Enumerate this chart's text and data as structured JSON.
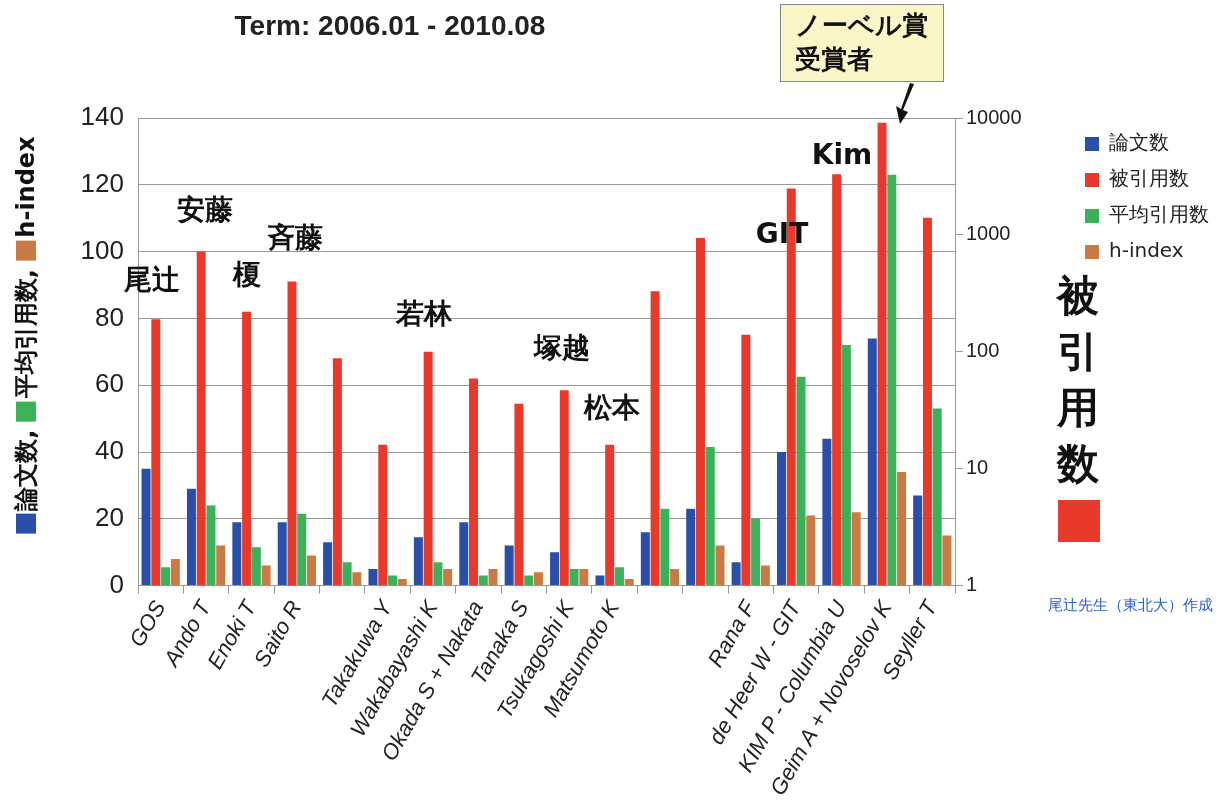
{
  "chart_data": {
    "type": "bar",
    "title": "Term: 2006.01 - 2010.08",
    "ylabel": "論文数, 平均引用数, h-index",
    "y2label": "被引用数",
    "categories": [
      "GOS",
      "Ando T",
      "Enoki T",
      "Saito R",
      null,
      "Takakuwa Y",
      "Wakabayashi K",
      "Okada S + Nakata",
      "Tanaka S",
      "Tsukagoshi K",
      "Matsumoto K",
      null,
      null,
      "Rana F",
      "de Heer W - GIT",
      "KIM P - Columbia U",
      "Geim A + Novoselov K",
      "Seyller T"
    ],
    "series": [
      {
        "name": "論文数",
        "color": "#2a4fa8",
        "values": [
          35,
          29,
          19,
          19,
          13,
          5,
          14.5,
          19,
          12,
          10,
          3,
          16,
          23,
          7,
          40,
          44,
          74,
          27
        ]
      },
      {
        "name": "被引用数",
        "color": "#e8392b",
        "axis": "y2",
        "values": [
          190,
          720,
          220,
          400,
          88,
          16,
          100,
          59,
          36,
          47,
          16,
          330,
          940,
          140,
          2500,
          3300,
          9100,
          1400
        ]
      },
      {
        "name": "平均引用数",
        "color": "#3cb15a",
        "values": [
          5.5,
          24,
          11.5,
          21.5,
          7,
          3,
          7,
          3,
          3,
          5,
          5.5,
          23,
          41.5,
          20,
          62.5,
          72,
          123,
          53
        ]
      },
      {
        "name": "h-index",
        "color": "#c97a45",
        "values": [
          8,
          12,
          6,
          9,
          4,
          2,
          5,
          5,
          4,
          5,
          2,
          5,
          12,
          6,
          21,
          22,
          34,
          15
        ]
      }
    ],
    "ylim": [
      0,
      140
    ],
    "yticks": [
      0,
      20,
      40,
      60,
      80,
      100,
      120,
      140
    ],
    "y2lim": [
      1,
      10000
    ],
    "y2ticks": [
      1,
      10,
      100,
      1000,
      10000
    ],
    "log": "y2",
    "grid": "y",
    "legend": "top right",
    "annotations": [
      "尾辻",
      "安藤",
      "榎",
      "斉藤",
      "若林",
      "塚越",
      "松本",
      "GIT",
      "Kim",
      "ノーベル賞受賞者",
      "尾辻先生（東北大）作成"
    ]
  }
}
